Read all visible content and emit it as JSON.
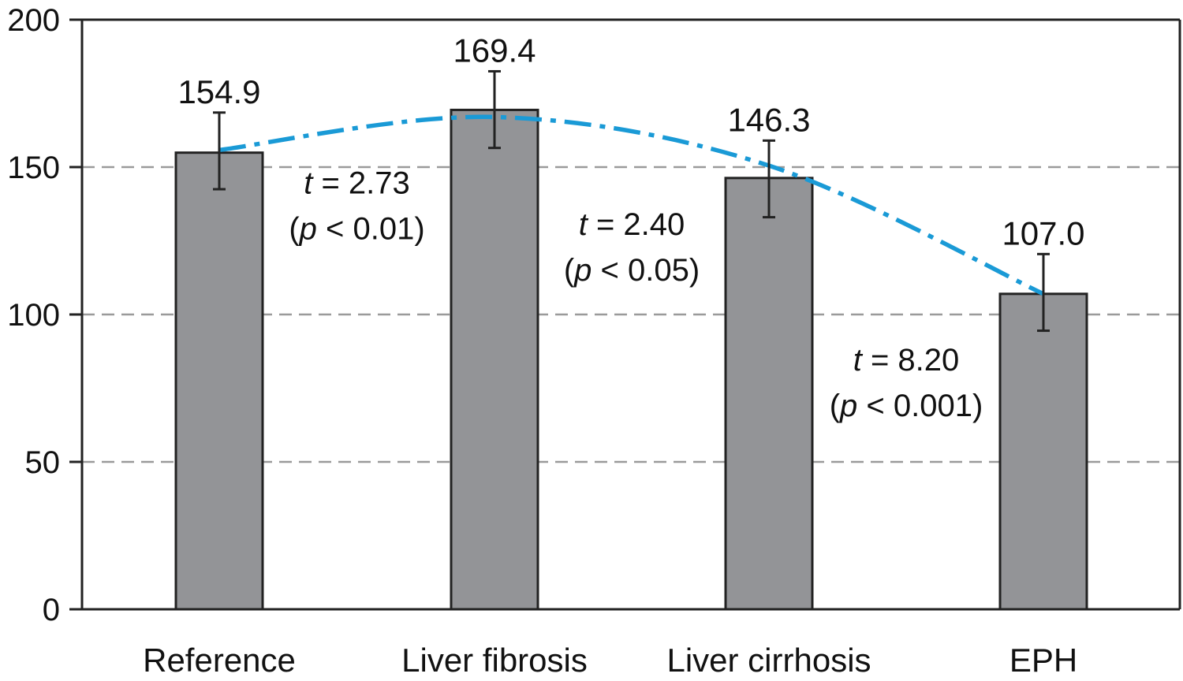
{
  "chart_data": {
    "type": "bar",
    "categories": [
      "Reference",
      "Liver fibrosis",
      "Liver cirrhosis",
      "EPH"
    ],
    "values": [
      154.9,
      169.4,
      146.3,
      107.0
    ],
    "value_labels": [
      "154.9",
      "169.4",
      "146.3",
      "107.0"
    ],
    "error_low": [
      142.5,
      156.5,
      133.0,
      94.5
    ],
    "error_high": [
      168.5,
      182.5,
      159.0,
      120.5
    ],
    "ylim": [
      0,
      200
    ],
    "yticks": [
      0,
      50,
      100,
      150,
      200
    ],
    "ytick_labels": [
      "0",
      "50",
      "100",
      "150",
      "200"
    ],
    "grid": {
      "dashed_at": [
        50,
        100,
        150
      ]
    },
    "colors": {
      "bar": "#939497",
      "bar_edge": "#222222",
      "trend": "#1a9ad6",
      "grid": "#9a9a9a"
    },
    "trend_line": {
      "style": "dash-dot",
      "through": [
        155.8,
        167.0,
        150.5,
        107.0
      ]
    },
    "annotations": [
      {
        "stat": "t",
        "value": "= 2.73",
        "p_open": "(",
        "p_var": "p",
        "p_text": " < 0.01)",
        "between": [
          0,
          1
        ],
        "y": 141
      },
      {
        "stat": "t",
        "value": "= 2.40",
        "p_open": "(",
        "p_var": "p",
        "p_text": " < 0.05)",
        "between": [
          1,
          2
        ],
        "y": 127
      },
      {
        "stat": "t",
        "value": "= 8.20",
        "p_open": "(",
        "p_var": "p",
        "p_text": " < 0.001)",
        "between": [
          2,
          3
        ],
        "y": 81
      }
    ]
  }
}
